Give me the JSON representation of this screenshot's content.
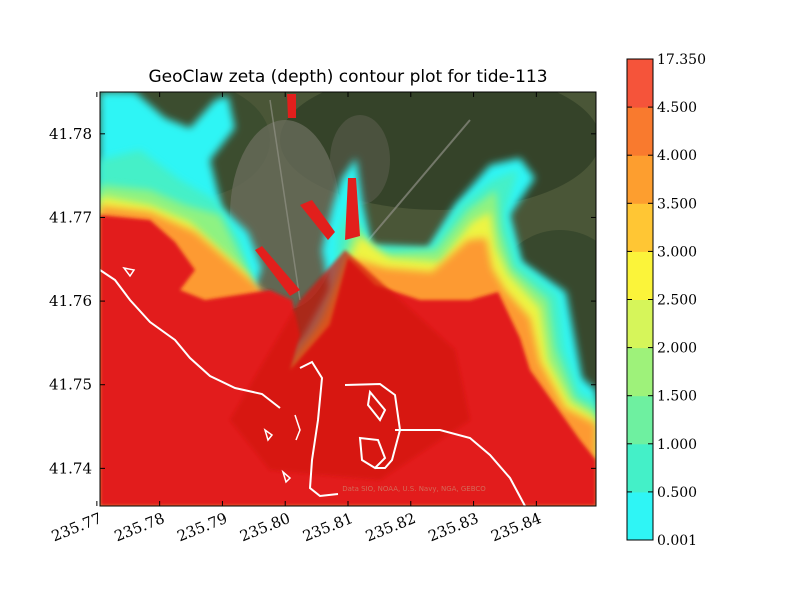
{
  "chart_data": {
    "type": "heatmap",
    "title": "GeoClaw zeta (depth) contour plot for tide-113",
    "xlabel": "",
    "ylabel": "",
    "x_ticks": [
      "235.77",
      "235.78",
      "235.79",
      "235.80",
      "235.81",
      "235.82",
      "235.83",
      "235.84"
    ],
    "x_tick_values": [
      235.77,
      235.78,
      235.79,
      235.8,
      235.81,
      235.82,
      235.83,
      235.84
    ],
    "y_ticks": [
      "41.74",
      "41.75",
      "41.76",
      "41.77",
      "41.78"
    ],
    "y_tick_values": [
      41.74,
      41.75,
      41.76,
      41.77,
      41.78
    ],
    "xlim": [
      235.7705,
      235.8495
    ],
    "ylim": [
      41.7355,
      41.785
    ],
    "credit_text": "Data SIO, NOAA, U.S. Navy, NGA, GEBCO",
    "colorbar": {
      "labels": [
        "0.001",
        "0.500",
        "1.000",
        "1.500",
        "2.000",
        "2.500",
        "3.000",
        "3.500",
        "4.000",
        "4.500",
        "17.350"
      ],
      "levels": [
        0.001,
        0.5,
        1.0,
        1.5,
        2.0,
        2.5,
        3.0,
        3.5,
        4.0,
        4.5,
        17.35
      ],
      "colors": [
        "#2ff5f5",
        "#44f0c8",
        "#6ef0a0",
        "#9ef27a",
        "#d6f55a",
        "#fbf43a",
        "#ffc634",
        "#fd9e2f",
        "#f97a2e",
        "#f5543a"
      ]
    },
    "background": "satellite imagery"
  }
}
